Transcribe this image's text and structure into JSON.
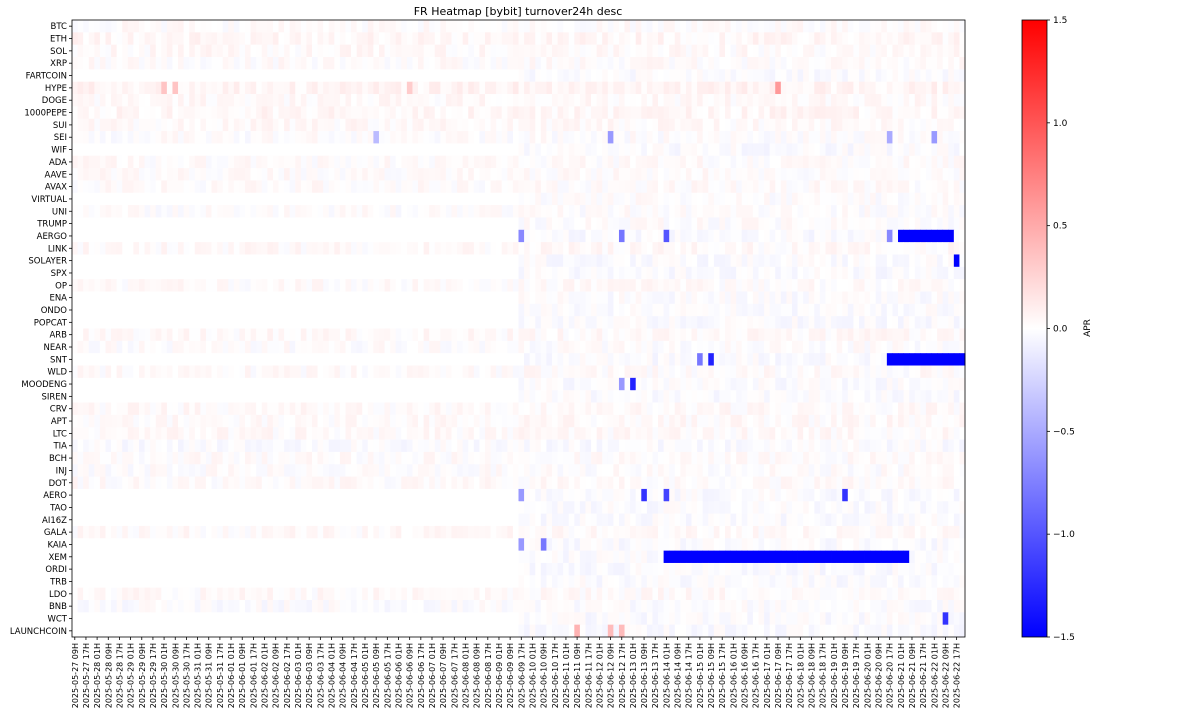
{
  "chart_data": {
    "type": "heatmap",
    "title": "FR Heatmap [bybit] turnover24h desc",
    "ylabel": "",
    "xlabel": "",
    "colorbar_label": "APR",
    "vmin": -1.5,
    "vmax": 1.5,
    "colorbar_ticks": [
      1.5,
      1.0,
      0.5,
      0.0,
      -0.5,
      -1.0,
      -1.5
    ],
    "colorbar_tick_labels": [
      "1.5",
      "1.0",
      "0.5",
      "0.0",
      "−0.5",
      "−1.0",
      "−1.5"
    ],
    "colormap": [
      "#0000ff",
      "#ffffff",
      "#ff0000"
    ],
    "symbols": [
      "BTC",
      "ETH",
      "SOL",
      "XRP",
      "FARTCOIN",
      "HYPE",
      "DOGE",
      "1000PEPE",
      "SUI",
      "SEI",
      "WIF",
      "ADA",
      "AAVE",
      "AVAX",
      "VIRTUAL",
      "UNI",
      "TRUMP",
      "AERGO",
      "LINK",
      "SOLAYER",
      "SPX",
      "OP",
      "ENA",
      "ONDO",
      "POPCAT",
      "ARB",
      "NEAR",
      "SNT",
      "WLD",
      "MOODENG",
      "SIREN",
      "CRV",
      "APT",
      "LTC",
      "TIA",
      "BCH",
      "INJ",
      "DOT",
      "AERO",
      "TAO",
      "AI16Z",
      "GALA",
      "KAIA",
      "XEM",
      "ORDI",
      "TRB",
      "LDO",
      "BNB",
      "WCT",
      "LAUNCHCOIN"
    ],
    "x_start": "2025-05-27 09H",
    "x_tick_labels": [
      "2025-05-27 09H",
      "2025-05-27 17H",
      "2025-05-28 01H",
      "2025-05-28 09H",
      "2025-05-28 17H",
      "2025-05-29 01H",
      "2025-05-29 09H",
      "2025-05-29 17H",
      "2025-05-30 01H",
      "2025-05-30 09H",
      "2025-05-30 17H",
      "2025-05-31 01H",
      "2025-05-31 09H",
      "2025-05-31 17H",
      "2025-06-01 01H",
      "2025-06-01 09H",
      "2025-06-01 17H",
      "2025-06-02 01H",
      "2025-06-02 09H",
      "2025-06-02 17H",
      "2025-06-03 01H",
      "2025-06-03 09H",
      "2025-06-03 17H",
      "2025-06-04 01H",
      "2025-06-04 09H",
      "2025-06-04 17H",
      "2025-06-05 01H",
      "2025-06-05 09H",
      "2025-06-05 17H",
      "2025-06-06 01H",
      "2025-06-06 09H",
      "2025-06-06 17H",
      "2025-06-07 01H",
      "2025-06-07 09H",
      "2025-06-07 17H",
      "2025-06-08 01H",
      "2025-06-08 09H",
      "2025-06-08 17H",
      "2025-06-09 01H",
      "2025-06-09 09H",
      "2025-06-09 17H",
      "2025-06-10 01H",
      "2025-06-10 09H",
      "2025-06-10 17H",
      "2025-06-11 01H",
      "2025-06-11 09H",
      "2025-06-11 17H",
      "2025-06-12 01H",
      "2025-06-12 09H",
      "2025-06-12 17H",
      "2025-06-13 01H",
      "2025-06-13 09H",
      "2025-06-13 17H",
      "2025-06-14 01H",
      "2025-06-14 09H",
      "2025-06-14 17H",
      "2025-06-15 01H",
      "2025-06-15 09H",
      "2025-06-15 17H",
      "2025-06-16 01H",
      "2025-06-16 09H",
      "2025-06-16 17H",
      "2025-06-17 01H",
      "2025-06-17 09H",
      "2025-06-17 17H",
      "2025-06-18 01H",
      "2025-06-18 09H",
      "2025-06-18 17H",
      "2025-06-19 01H",
      "2025-06-19 09H",
      "2025-06-19 17H",
      "2025-06-20 01H",
      "2025-06-20 09H",
      "2025-06-20 17H",
      "2025-06-21 01H",
      "2025-06-21 09H",
      "2025-06-21 17H",
      "2025-06-22 01H",
      "2025-06-22 09H",
      "2025-06-22 17H"
    ],
    "base_values": [
      0.03,
      0.06,
      0.04,
      0.03,
      0.0,
      0.08,
      0.04,
      0.06,
      0.04,
      0.02,
      0.0,
      0.03,
      0.03,
      0.03,
      0.02,
      0.02,
      0.02,
      0.0,
      0.04,
      0.0,
      0.0,
      0.03,
      0.01,
      0.0,
      0.0,
      0.04,
      0.02,
      0.0,
      0.03,
      0.0,
      0.0,
      0.04,
      0.04,
      0.04,
      0.0,
      0.03,
      0.02,
      0.03,
      0.0,
      0.0,
      0.0,
      0.04,
      0.0,
      0.0,
      0.0,
      0.0,
      0.04,
      0.01,
      0.0,
      0.0
    ],
    "notable_cells": [
      {
        "symbol": "HYPE",
        "x": "2025-05-30 01H",
        "value": 0.35
      },
      {
        "symbol": "HYPE",
        "x": "2025-05-30 09H",
        "value": 0.35
      },
      {
        "symbol": "HYPE",
        "x": "2025-06-06 09H",
        "value": 0.3
      },
      {
        "symbol": "HYPE",
        "x": "2025-06-17 09H",
        "value": 0.6
      },
      {
        "symbol": "SEI",
        "x": "2025-06-05 09H",
        "value": -0.4
      },
      {
        "symbol": "SEI",
        "x": "2025-06-12 09H",
        "value": -0.6
      },
      {
        "symbol": "SEI",
        "x": "2025-06-20 17H",
        "value": -0.5
      },
      {
        "symbol": "SEI",
        "x": "2025-06-22 01H",
        "value": -0.6
      },
      {
        "symbol": "AERGO",
        "x": "2025-06-09 17H",
        "value": -0.7
      },
      {
        "symbol": "AERGO",
        "x": "2025-06-12 17H",
        "value": -0.8
      },
      {
        "symbol": "AERGO",
        "x": "2025-06-14 01H",
        "value": -1.0
      },
      {
        "symbol": "AERGO",
        "x": "2025-06-20 17H",
        "value": -0.7
      },
      {
        "symbol": "SOLAYER",
        "x": "2025-06-22 17H",
        "value": -1.5
      },
      {
        "symbol": "SNT",
        "x": "2025-06-15 01H",
        "value": -0.8
      },
      {
        "symbol": "SNT",
        "x": "2025-06-15 09H",
        "value": -1.3
      },
      {
        "symbol": "MOODENG",
        "x": "2025-06-13 01H",
        "value": -1.3
      },
      {
        "symbol": "MOODENG",
        "x": "2025-06-12 17H",
        "value": -0.6
      },
      {
        "symbol": "AERO",
        "x": "2025-06-13 09H",
        "value": -1.2
      },
      {
        "symbol": "AERO",
        "x": "2025-06-14 01H",
        "value": -1.1
      },
      {
        "symbol": "AERO",
        "x": "2025-06-19 09H",
        "value": -1.2
      },
      {
        "symbol": "AERO",
        "x": "2025-06-09 17H",
        "value": -0.6
      },
      {
        "symbol": "KAIA",
        "x": "2025-06-10 09H",
        "value": -0.8
      },
      {
        "symbol": "KAIA",
        "x": "2025-06-09 17H",
        "value": -0.6
      },
      {
        "symbol": "WCT",
        "x": "2025-06-22 09H",
        "value": -1.2
      },
      {
        "symbol": "LAUNCHCOIN",
        "x": "2025-06-11 09H",
        "value": 0.45
      },
      {
        "symbol": "LAUNCHCOIN",
        "x": "2025-06-12 09H",
        "value": 0.4
      },
      {
        "symbol": "LAUNCHCOIN",
        "x": "2025-06-12 17H",
        "value": 0.4
      }
    ],
    "notable_runs": [
      {
        "symbol": "AERGO",
        "from": "2025-06-21 01H",
        "to": "2025-06-22 09H",
        "value": -1.5
      },
      {
        "symbol": "SNT",
        "from": "2025-06-20 17H",
        "to": "2025-06-22 17H",
        "value": -1.5
      },
      {
        "symbol": "XEM",
        "from": "2025-06-14 01H",
        "to": "2025-06-21 01H",
        "value": -1.5
      }
    ],
    "missing_before": {
      "FARTCOIN": "2025-06-09 17H",
      "AERGO": "2025-06-09 17H",
      "SOLAYER": "2025-06-09 17H",
      "SPX": "2025-06-09 17H",
      "ENA": "2025-06-09 17H",
      "ONDO": "2025-06-09 17H",
      "POPCAT": "2025-06-09 17H",
      "MOODENG": "2025-06-09 17H",
      "SIREN": "2025-06-09 17H",
      "AERO": "2025-06-09 17H",
      "TAO": "2025-06-09 17H",
      "AI16Z": "2025-06-09 17H",
      "KAIA": "2025-06-09 17H",
      "XEM": "2025-06-09 17H",
      "ORDI": "2025-06-09 17H",
      "TRB": "2025-06-09 17H",
      "WCT": "2025-06-09 17H",
      "LAUNCHCOIN": "2025-06-09 17H",
      "TRUMP": "2025-06-09 17H",
      "SNT": "2025-06-09 17H",
      "VIRTUAL": "2025-06-09 17H",
      "WIF": "2025-06-09 17H"
    }
  }
}
